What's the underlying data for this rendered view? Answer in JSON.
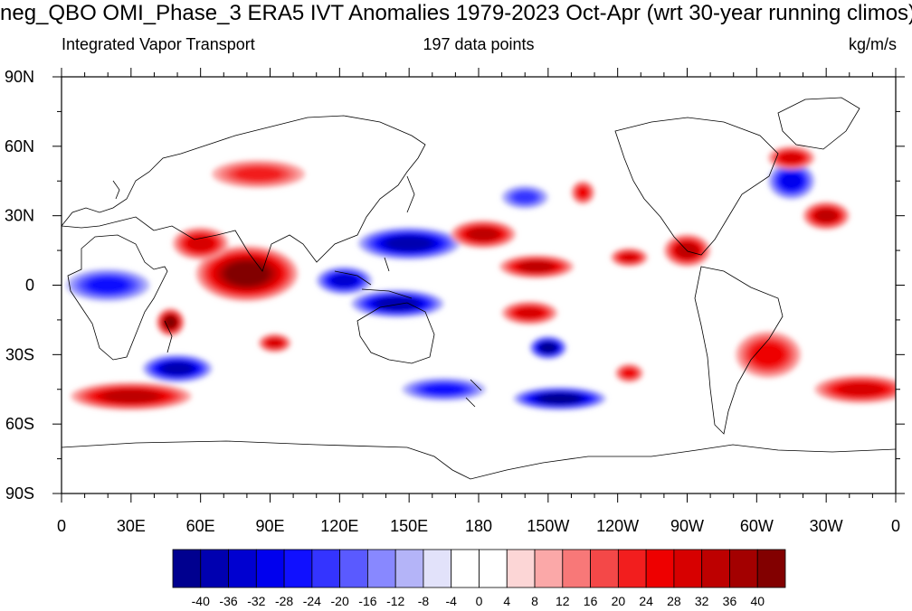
{
  "title": "neg_QBO OMI_Phase_3 ERA5 IVT Anomalies 1979-2023 Oct-Apr (wrt 30-year running climos)",
  "left_string": "Integrated Vapor Transport",
  "center_string": "197 data points",
  "right_string": "kg/m/s",
  "lat_labels": [
    "90N",
    "60N",
    "30N",
    "0",
    "30S",
    "60S",
    "90S"
  ],
  "lon_labels": [
    "0",
    "30E",
    "60E",
    "90E",
    "120E",
    "150E",
    "180",
    "150W",
    "120W",
    "90W",
    "60W",
    "30W",
    "0"
  ],
  "colorbar": {
    "labels": [
      "-40",
      "-36",
      "-32",
      "-28",
      "-24",
      "-20",
      "-16",
      "-12",
      "-8",
      "-4",
      "0",
      "4",
      "8",
      "12",
      "16",
      "20",
      "24",
      "28",
      "32",
      "36",
      "40"
    ],
    "colors": [
      "#00008f",
      "#0000b0",
      "#0000d0",
      "#0000ee",
      "#1010ff",
      "#3434ff",
      "#5a5aff",
      "#8888ff",
      "#b4b4f8",
      "#e2e2fa",
      "#ffffff",
      "#ffffff",
      "#fcd6d6",
      "#fba8a8",
      "#f87878",
      "#f44848",
      "#f21e1e",
      "#ee0000",
      "#d70000",
      "#bd0000",
      "#a30000",
      "#820000"
    ]
  },
  "map": {
    "projection": "cylindrical equidistant",
    "field": "IVT anomaly (kg/m/s)",
    "blobs": [
      {
        "lon": 80,
        "lat": 5,
        "val": 40,
        "rx": 22,
        "ry": 12
      },
      {
        "lon": 60,
        "lat": 18,
        "val": 28,
        "rx": 12,
        "ry": 7
      },
      {
        "lon": 92,
        "lat": -25,
        "val": 28,
        "rx": 7,
        "ry": 4
      },
      {
        "lon": 47,
        "lat": -16,
        "val": 40,
        "rx": 6,
        "ry": 6
      },
      {
        "lon": 30,
        "lat": -48,
        "val": 32,
        "rx": 26,
        "ry": 6
      },
      {
        "lon": 50,
        "lat": -36,
        "val": -36,
        "rx": 15,
        "ry": 6
      },
      {
        "lon": 20,
        "lat": 0,
        "val": -24,
        "rx": 18,
        "ry": 7
      },
      {
        "lon": 122,
        "lat": 2,
        "val": -32,
        "rx": 12,
        "ry": 6
      },
      {
        "lon": 150,
        "lat": 18,
        "val": -36,
        "rx": 22,
        "ry": 7
      },
      {
        "lon": 145,
        "lat": -8,
        "val": -36,
        "rx": 20,
        "ry": 6
      },
      {
        "lon": 182,
        "lat": 22,
        "val": 32,
        "rx": 14,
        "ry": 6
      },
      {
        "lon": 205,
        "lat": 8,
        "val": 32,
        "rx": 16,
        "ry": 5
      },
      {
        "lon": 202,
        "lat": -12,
        "val": 28,
        "rx": 12,
        "ry": 5
      },
      {
        "lon": 210,
        "lat": -27,
        "val": -40,
        "rx": 8,
        "ry": 5
      },
      {
        "lon": 215,
        "lat": -49,
        "val": -40,
        "rx": 20,
        "ry": 5
      },
      {
        "lon": 165,
        "lat": -45,
        "val": -24,
        "rx": 18,
        "ry": 5
      },
      {
        "lon": 245,
        "lat": -38,
        "val": 24,
        "rx": 6,
        "ry": 4
      },
      {
        "lon": 270,
        "lat": 15,
        "val": 32,
        "rx": 10,
        "ry": 7
      },
      {
        "lon": 245,
        "lat": 12,
        "val": 28,
        "rx": 8,
        "ry": 4
      },
      {
        "lon": 330,
        "lat": 30,
        "val": 32,
        "rx": 10,
        "ry": 6
      },
      {
        "lon": 315,
        "lat": 45,
        "val": -28,
        "rx": 10,
        "ry": 8
      },
      {
        "lon": 305,
        "lat": -30,
        "val": 24,
        "rx": 14,
        "ry": 10
      },
      {
        "lon": 345,
        "lat": -45,
        "val": 28,
        "rx": 20,
        "ry": 6
      },
      {
        "lon": 315,
        "lat": 55,
        "val": 28,
        "rx": 10,
        "ry": 5
      },
      {
        "lon": 85,
        "lat": 48,
        "val": 20,
        "rx": 20,
        "ry": 6
      },
      {
        "lon": 225,
        "lat": 40,
        "val": 24,
        "rx": 5,
        "ry": 5
      },
      {
        "lon": 200,
        "lat": 38,
        "val": -20,
        "rx": 10,
        "ry": 5
      }
    ]
  }
}
